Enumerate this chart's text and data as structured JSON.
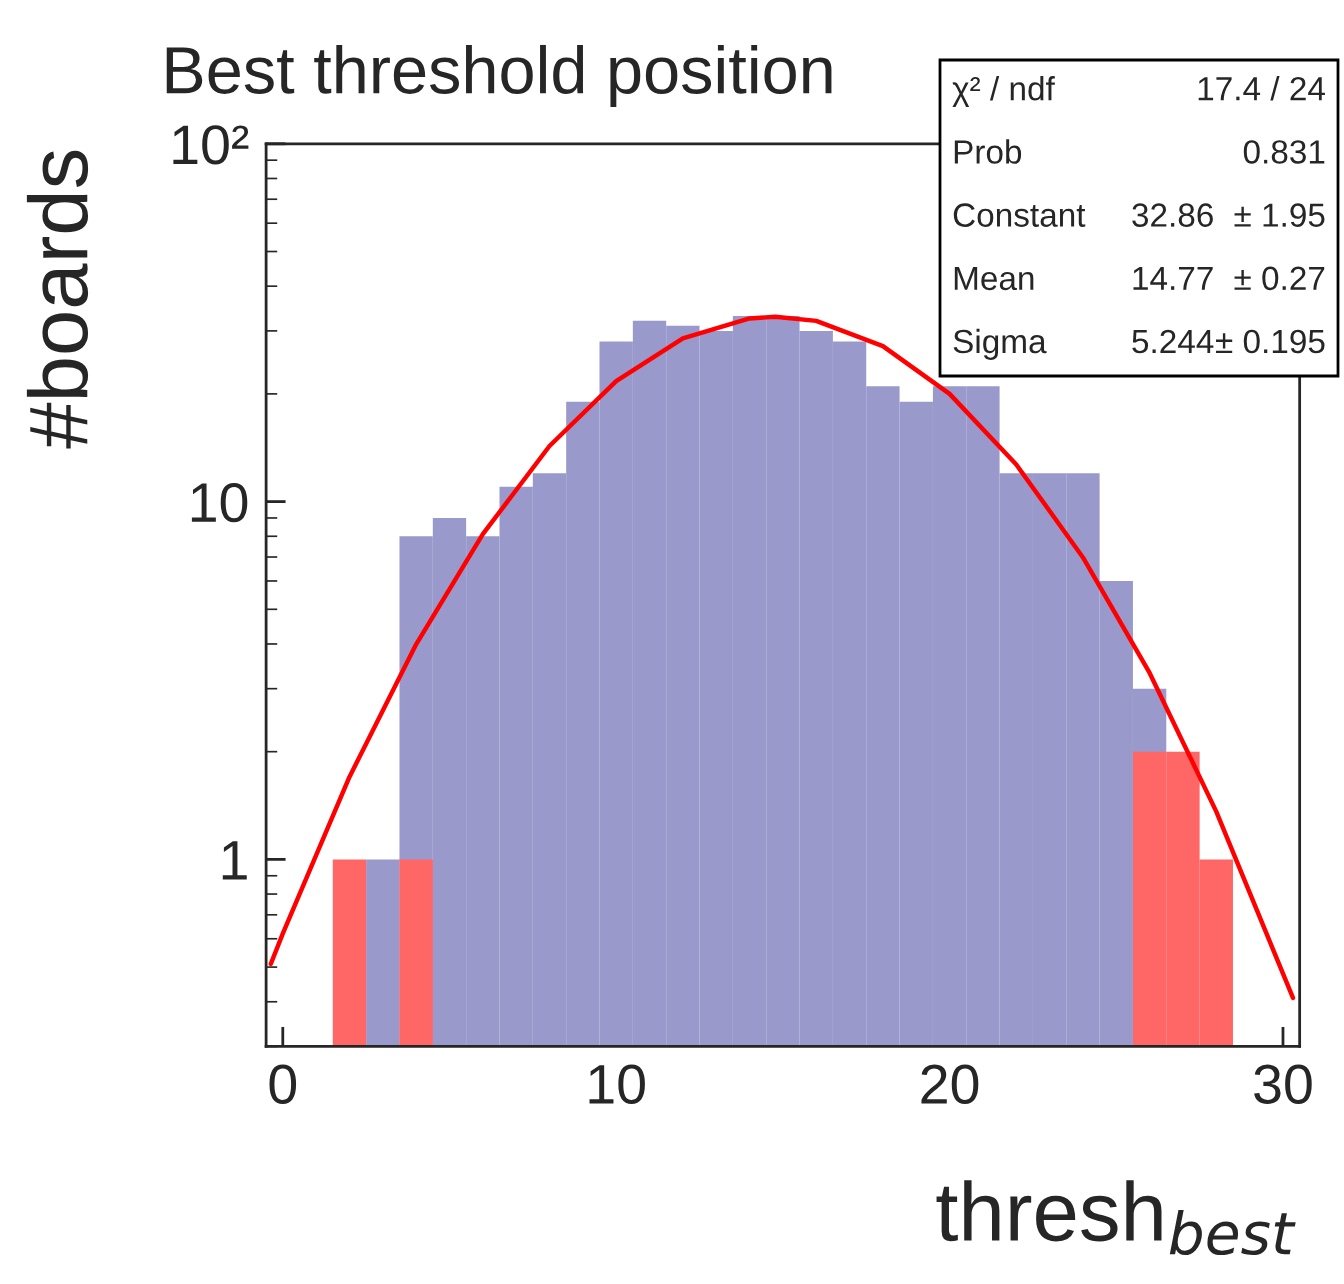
{
  "chart_data": {
    "type": "histogram",
    "title": "Best threshold position",
    "xlabel": "thresh$_{best}$",
    "ylabel": "#boards",
    "bins": [
      1.5,
      2.5,
      3.5,
      4.5,
      5.5,
      6.5,
      7.5,
      8.5,
      9.5,
      10.5,
      11.5,
      12.5,
      13.5,
      14.5,
      15.5,
      16.5,
      17.5,
      18.5,
      19.5,
      20.5,
      21.5,
      22.5,
      23.5,
      24.5,
      25.5,
      26.5,
      27.5,
      28.5
    ],
    "series": [
      {
        "color": "#9999cc",
        "values": [
          null,
          1,
          8,
          9,
          8,
          11,
          12,
          19,
          28,
          32,
          31,
          30,
          33,
          33,
          30,
          28,
          21,
          19,
          21,
          21,
          12,
          12,
          12,
          6,
          3,
          null,
          null
        ]
      },
      {
        "color": "#ff6666",
        "values": [
          1,
          null,
          1,
          null,
          null,
          null,
          null,
          null,
          null,
          null,
          null,
          null,
          null,
          null,
          null,
          null,
          null,
          null,
          null,
          null,
          null,
          null,
          null,
          null,
          2,
          2,
          1
        ]
      },
      {
        "type": "line",
        "color": "#ff0000",
        "x": [
          -0.36,
          0,
          2,
          4,
          6,
          8,
          10,
          12,
          14,
          14.77,
          16,
          18,
          20,
          22,
          24,
          26,
          28,
          30.3
        ],
        "values": [
          0.51,
          0.62,
          1.7,
          3.99,
          8.11,
          14.3,
          21.7,
          28.6,
          32.5,
          32.86,
          32.0,
          27.2,
          20.0,
          12.7,
          6.98,
          3.32,
          1.36,
          0.41
        ]
      }
    ],
    "xlim": [
      -0.5,
      30.5
    ],
    "ylim": [
      0.3,
      100
    ],
    "xticks": [
      0,
      10,
      20,
      30
    ],
    "yticks": [
      1,
      10,
      {
        "value": 100,
        "label": "10²"
      }
    ],
    "log": true,
    "annotations": [
      "χ² / ndf",
      "17.4 / 24",
      "Prob",
      "0.831",
      "Constant",
      "32.86",
      "± 1.95",
      "Mean",
      "14.77",
      "± 0.27",
      "Sigma",
      "5.244",
      "± 0.195"
    ]
  }
}
